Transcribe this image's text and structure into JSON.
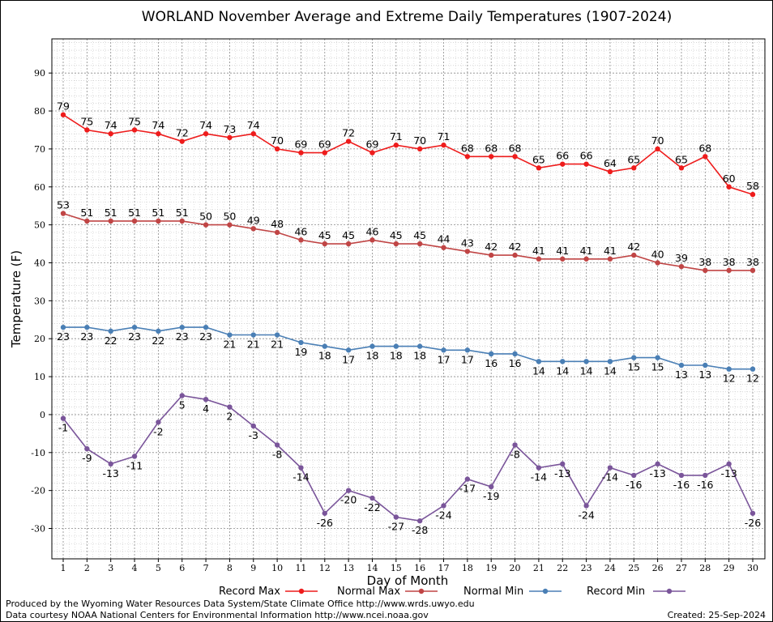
{
  "chart_data": {
    "type": "line",
    "title": "WORLAND November Average and Extreme Daily Temperatures (1907-2024)",
    "xlabel": "Day of Month",
    "ylabel": "Temperature (F)",
    "x": [
      1,
      2,
      3,
      4,
      5,
      6,
      7,
      8,
      9,
      10,
      11,
      12,
      13,
      14,
      15,
      16,
      17,
      18,
      19,
      20,
      21,
      22,
      23,
      24,
      25,
      26,
      27,
      28,
      29,
      30
    ],
    "xlim": [
      1,
      30
    ],
    "ylim": [
      -38,
      99
    ],
    "yticks": [
      -30,
      -20,
      -10,
      0,
      10,
      20,
      30,
      40,
      50,
      60,
      70,
      80,
      90
    ],
    "grid": true,
    "legend_position": "bottom",
    "series": [
      {
        "name": "Record Max",
        "color": "#ee1c1c",
        "values": [
          79,
          75,
          74,
          75,
          74,
          72,
          74,
          73,
          74,
          70,
          69,
          69,
          72,
          69,
          71,
          70,
          71,
          68,
          68,
          68,
          65,
          66,
          66,
          64,
          65,
          70,
          65,
          68,
          60,
          58
        ]
      },
      {
        "name": "Normal Max",
        "color": "#c04545",
        "values": [
          53,
          51,
          51,
          51,
          51,
          51,
          50,
          50,
          49,
          48,
          46,
          45,
          45,
          46,
          45,
          45,
          44,
          43,
          42,
          42,
          41,
          41,
          41,
          41,
          42,
          40,
          39,
          38,
          38,
          38
        ]
      },
      {
        "name": "Normal Min",
        "color": "#4a7fb5",
        "values": [
          23,
          23,
          22,
          23,
          22,
          23,
          23,
          21,
          21,
          21,
          19,
          18,
          17,
          18,
          18,
          18,
          17,
          17,
          16,
          16,
          14,
          14,
          14,
          14,
          15,
          15,
          13,
          13,
          12,
          12
        ]
      },
      {
        "name": "Record Min",
        "color": "#7a559a",
        "values": [
          -1,
          -9,
          -13,
          -11,
          -2,
          5,
          4,
          2,
          -3,
          -8,
          -14,
          -26,
          -20,
          -22,
          -27,
          -28,
          -24,
          -17,
          -19,
          -8,
          -14,
          -13,
          -24,
          -14,
          -16,
          -13,
          -16,
          -16,
          -13,
          -26
        ]
      }
    ]
  },
  "footer": {
    "produced_by": "Produced by the Wyoming Water Resources Data System/State Climate Office http://www.wrds.uwyo.edu",
    "courtesy": "Data courtesy NOAA National Centers for Environmental Information http://www.ncei.noaa.gov",
    "created": "Created:  25-Sep-2024"
  }
}
